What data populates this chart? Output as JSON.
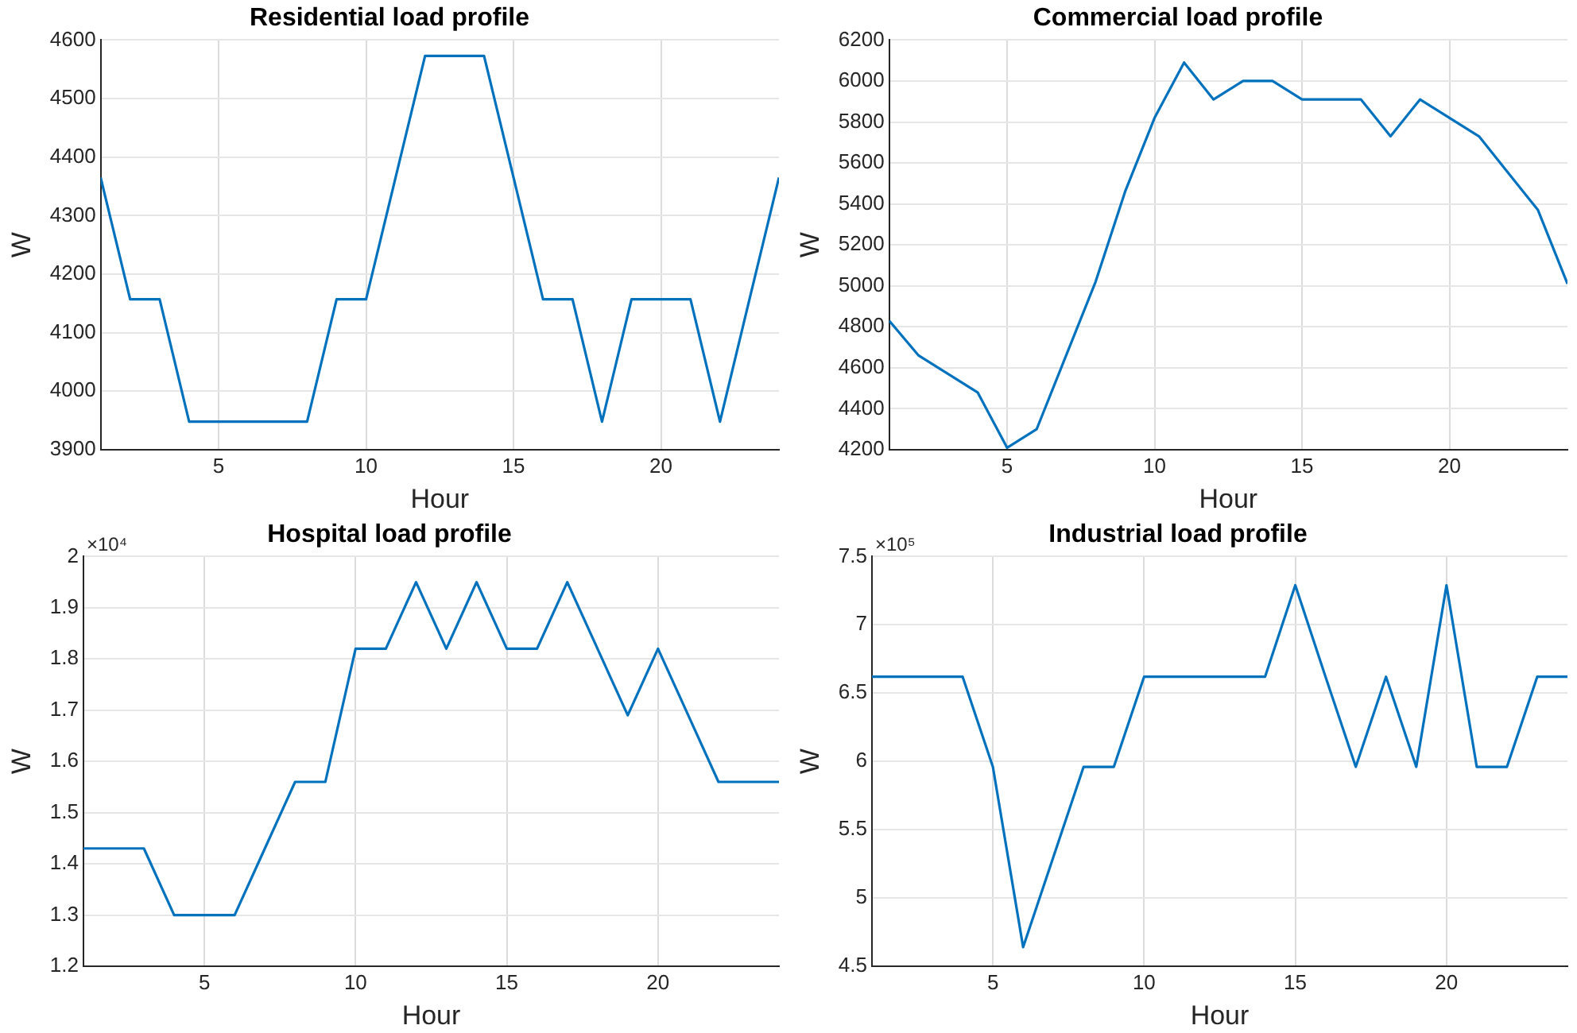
{
  "chart_data": [
    {
      "type": "line",
      "title": "Residential load profile",
      "xlabel": "Hour",
      "ylabel": "W",
      "x": [
        1,
        2,
        3,
        4,
        5,
        6,
        7,
        8,
        9,
        10,
        11,
        12,
        13,
        14,
        15,
        16,
        17,
        18,
        19,
        20,
        21,
        22,
        23,
        24
      ],
      "series": [
        {
          "color": "#0072bd",
          "values": [
            4365,
            4157,
            4157,
            3948,
            3948,
            3948,
            3948,
            3948,
            4157,
            4157,
            4365,
            4573,
            4573,
            4573,
            4365,
            4157,
            4157,
            3948,
            4157,
            4157,
            4157,
            3948,
            4157,
            4365
          ]
        }
      ],
      "xlim": [
        1,
        24
      ],
      "xticks": [
        5,
        10,
        15,
        20
      ],
      "ylim": [
        3900,
        4600
      ],
      "yticks": [
        3900,
        4000,
        4100,
        4200,
        4300,
        4400,
        4500,
        4600
      ],
      "grid": true
    },
    {
      "type": "line",
      "title": "Commercial load profile",
      "xlabel": "Hour",
      "ylabel": "W",
      "x": [
        1,
        2,
        3,
        4,
        5,
        6,
        7,
        8,
        9,
        10,
        11,
        12,
        13,
        14,
        15,
        16,
        17,
        18,
        19,
        20,
        21,
        22,
        23,
        24
      ],
      "series": [
        {
          "color": "#0072bd",
          "values": [
            4830,
            4660,
            4570,
            4480,
            4210,
            4300,
            4660,
            5020,
            5460,
            5820,
            6090,
            5910,
            6000,
            6000,
            5910,
            5910,
            5910,
            5730,
            5910,
            5820,
            5730,
            5550,
            5370,
            5010
          ]
        }
      ],
      "xlim": [
        1,
        24
      ],
      "xticks": [
        5,
        10,
        15,
        20
      ],
      "ylim": [
        4200,
        6200
      ],
      "yticks": [
        4200,
        4400,
        4600,
        4800,
        5000,
        5200,
        5400,
        5600,
        5800,
        6000,
        6200
      ],
      "grid": true
    },
    {
      "type": "line",
      "title": "Hospital load profile",
      "xlabel": "Hour",
      "ylabel": "W",
      "annotations": [
        "×10⁴"
      ],
      "x": [
        1,
        2,
        3,
        4,
        5,
        6,
        7,
        8,
        9,
        10,
        11,
        12,
        13,
        14,
        15,
        16,
        17,
        18,
        19,
        20,
        21,
        22,
        23,
        24
      ],
      "series": [
        {
          "color": "#0072bd",
          "values": [
            1.43,
            1.43,
            1.43,
            1.3,
            1.3,
            1.3,
            1.43,
            1.56,
            1.56,
            1.82,
            1.82,
            1.95,
            1.82,
            1.95,
            1.82,
            1.82,
            1.95,
            1.82,
            1.69,
            1.82,
            1.69,
            1.56,
            1.56,
            1.56
          ]
        }
      ],
      "xlim": [
        1,
        24
      ],
      "xticks": [
        5,
        10,
        15,
        20
      ],
      "ylim": [
        1.2,
        2
      ],
      "yticks": [
        1.2,
        1.3,
        1.4,
        1.5,
        1.6,
        1.7,
        1.8,
        1.9,
        2
      ],
      "grid": true
    },
    {
      "type": "line",
      "title": "Industrial load profile",
      "xlabel": "Hour",
      "ylabel": "W",
      "annotations": [
        "×10⁵"
      ],
      "x": [
        1,
        2,
        3,
        4,
        5,
        6,
        7,
        8,
        9,
        10,
        11,
        12,
        13,
        14,
        15,
        16,
        17,
        18,
        19,
        20,
        21,
        22,
        23,
        24
      ],
      "series": [
        {
          "color": "#0072bd",
          "values": [
            6.62,
            6.62,
            6.62,
            6.62,
            5.96,
            4.64,
            5.3,
            5.96,
            5.96,
            6.62,
            6.62,
            6.62,
            6.62,
            6.62,
            7.29,
            6.62,
            5.96,
            6.62,
            5.96,
            7.29,
            5.96,
            5.96,
            6.62,
            6.62
          ]
        }
      ],
      "xlim": [
        1,
        24
      ],
      "xticks": [
        5,
        10,
        15,
        20
      ],
      "ylim": [
        4.5,
        7.5
      ],
      "yticks": [
        4.5,
        5,
        5.5,
        6,
        6.5,
        7,
        7.5
      ],
      "grid": true
    }
  ]
}
